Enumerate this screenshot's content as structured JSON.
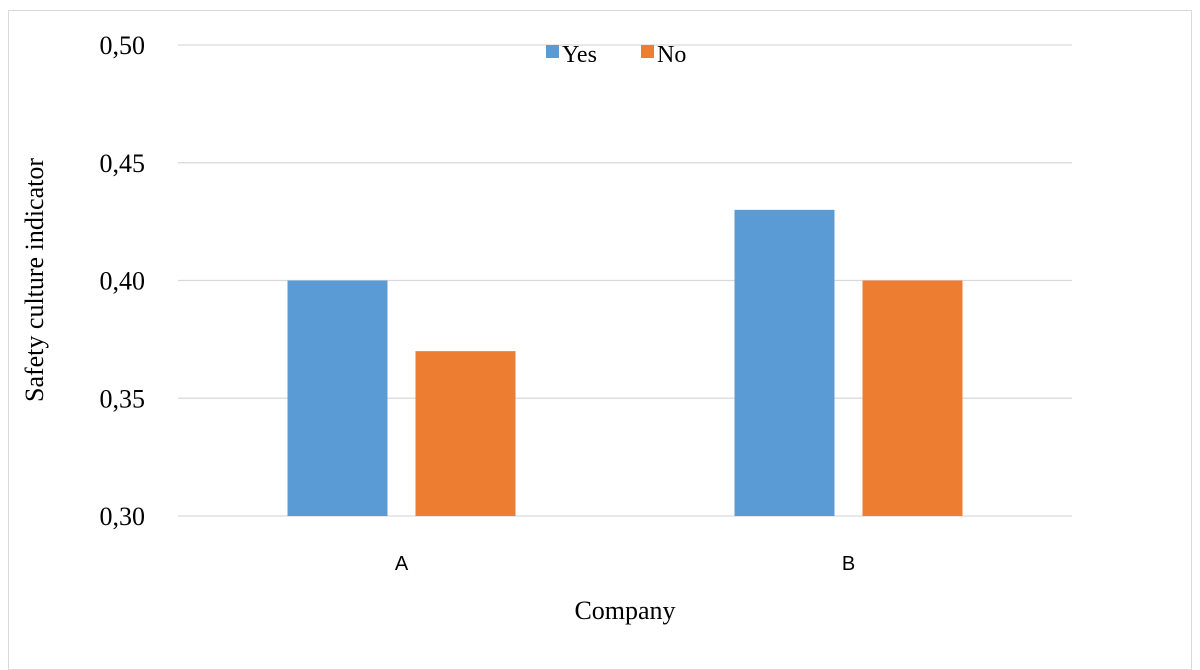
{
  "chart_data": {
    "type": "bar",
    "title": "",
    "xlabel": "Company",
    "ylabel": "Safety culture indicator",
    "categories": [
      "A",
      "B"
    ],
    "series": [
      {
        "name": "Yes",
        "values": [
          0.4,
          0.43
        ],
        "color": "#5B9BD5"
      },
      {
        "name": "No",
        "values": [
          0.37,
          0.4
        ],
        "color": "#ED7D31"
      }
    ],
    "ylim": [
      0.3,
      0.5
    ],
    "yticks": [
      "0,50",
      "0,45",
      "0,40",
      "0,35",
      "0,30"
    ],
    "ytick_values": [
      0.5,
      0.45,
      0.4,
      0.35,
      0.3
    ],
    "grid": true,
    "legend_position": "top-center"
  }
}
